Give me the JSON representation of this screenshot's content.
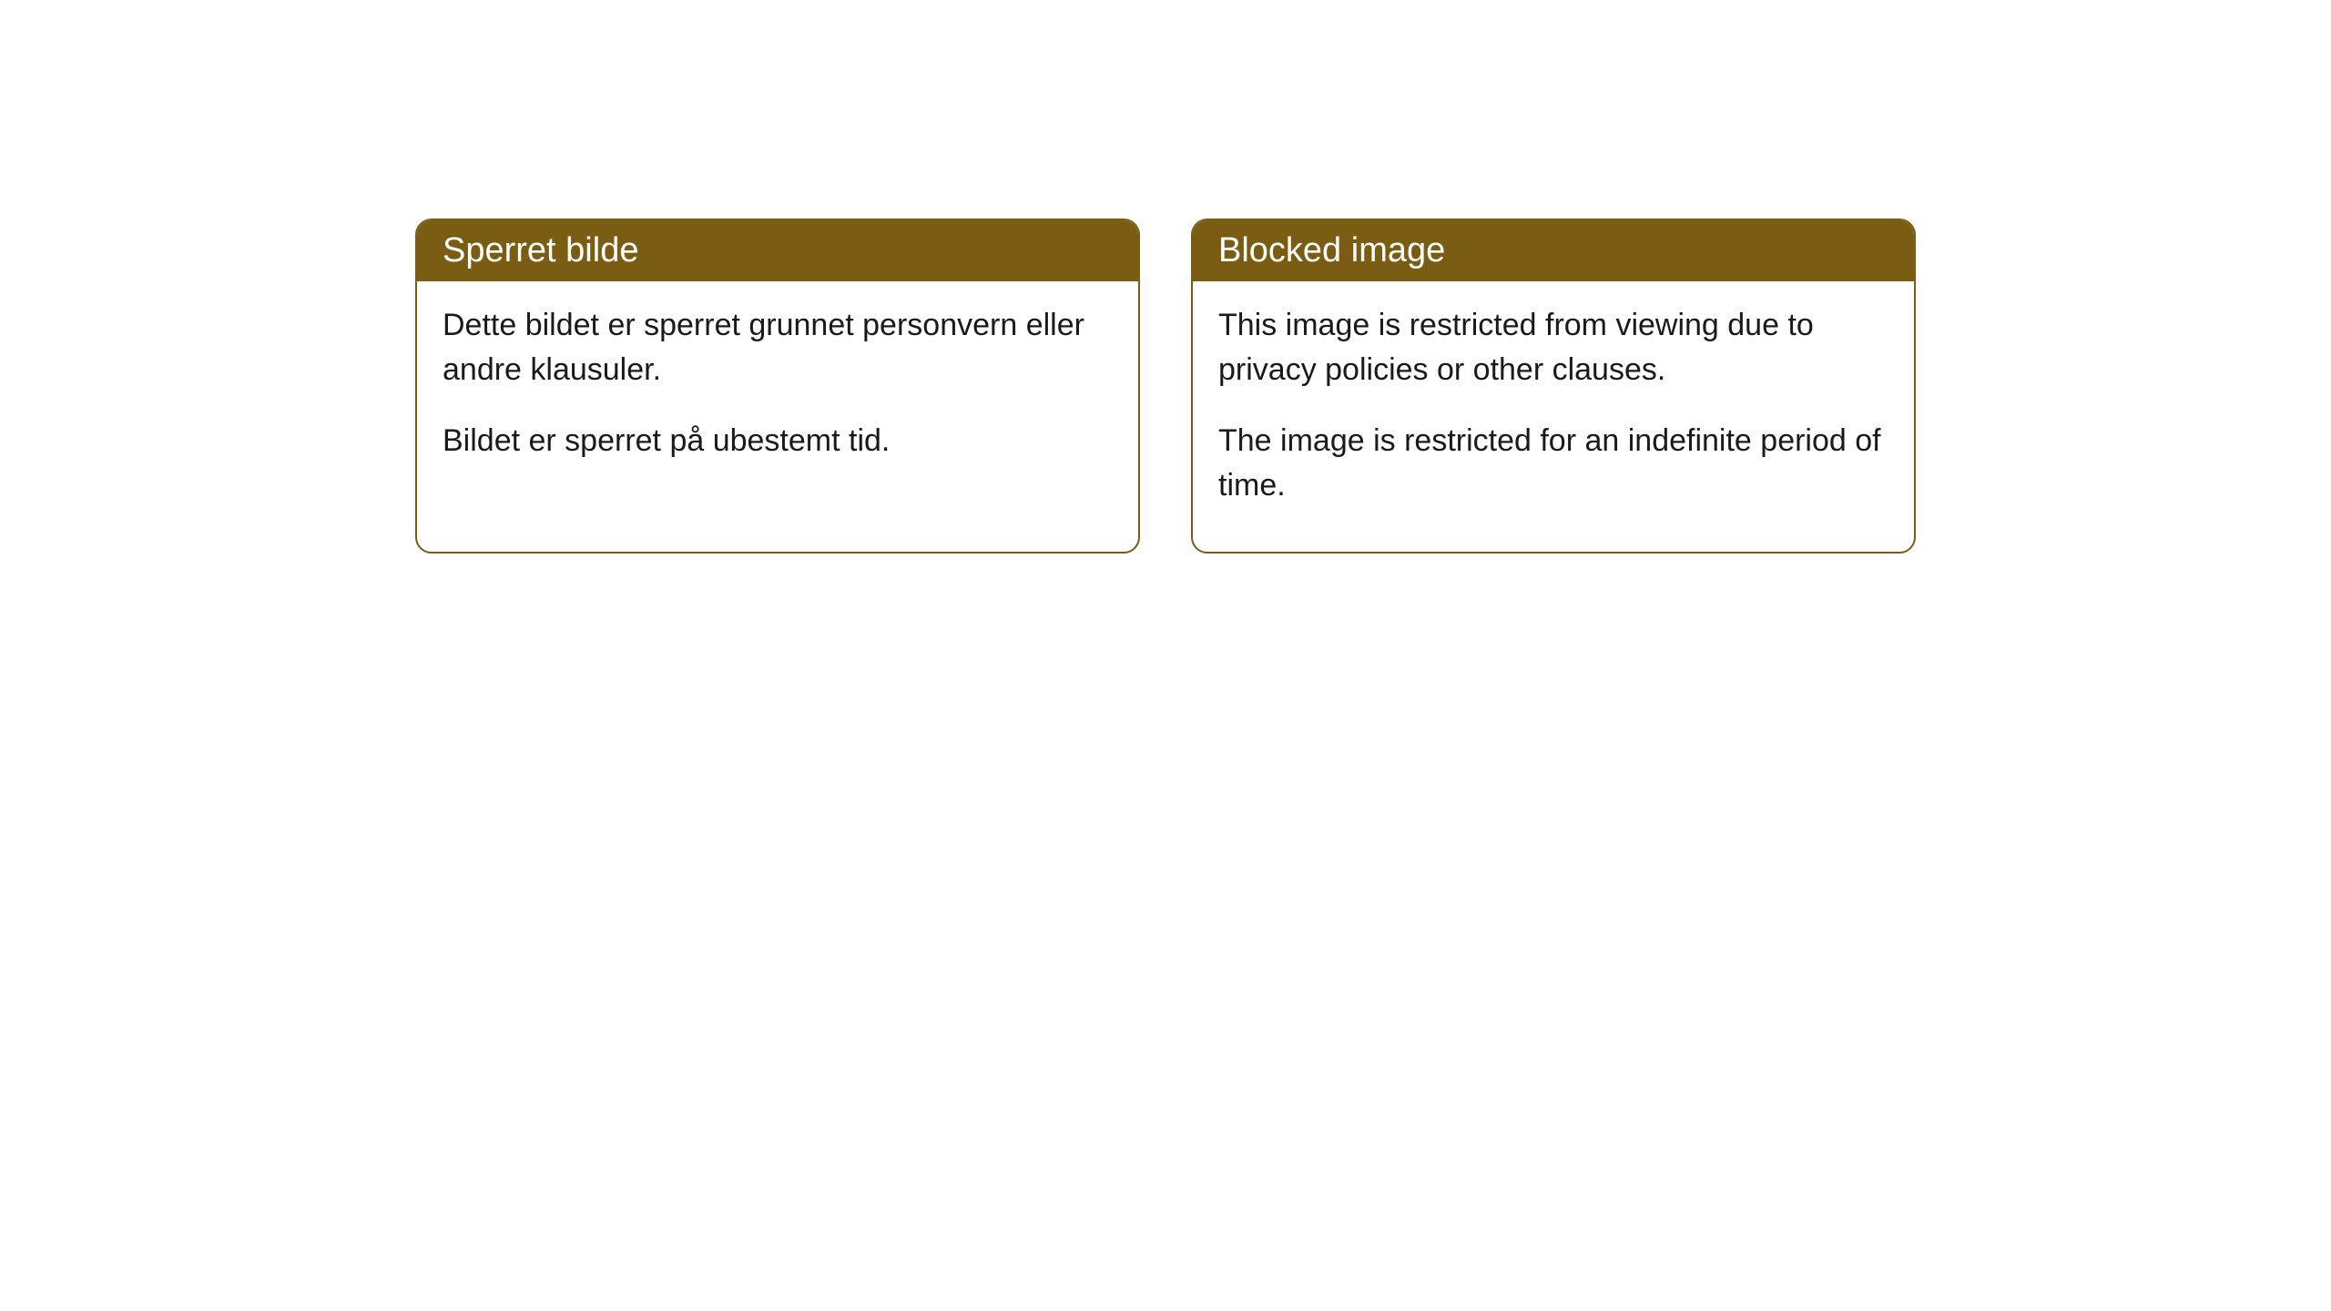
{
  "cards": [
    {
      "title": "Sperret bilde",
      "paragraph1": "Dette bildet er sperret grunnet personvern eller andre klausuler.",
      "paragraph2": "Bildet er sperret på ubestemt tid."
    },
    {
      "title": "Blocked image",
      "paragraph1": "This image is restricted from viewing due to privacy policies or other clauses.",
      "paragraph2": "The image is restricted for an indefinite period of time."
    }
  ],
  "styling": {
    "header_bg_color": "#7a5d13",
    "header_text_color": "#ffffff",
    "border_color": "#7a5d13",
    "body_bg_color": "#ffffff",
    "body_text_color": "#1a1a1a",
    "border_radius": 18,
    "header_fontsize": 38,
    "body_fontsize": 34,
    "card_gap": 56
  }
}
